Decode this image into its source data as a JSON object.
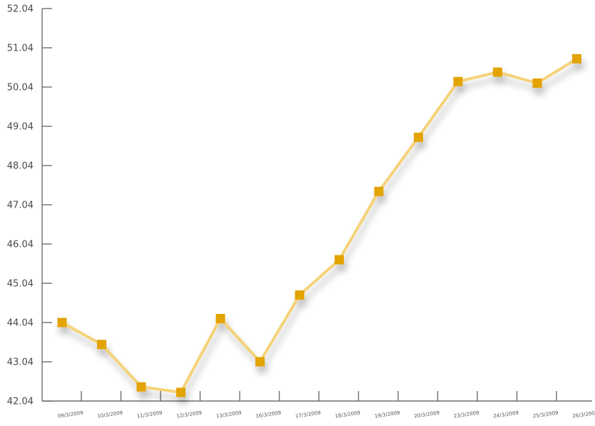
{
  "chart_data": {
    "type": "line",
    "title": "",
    "xlabel": "",
    "ylabel": "",
    "categories": [
      "09/3/2009",
      "10/3/2009",
      "11/3/2009",
      "12/3/2009",
      "13/3/2009",
      "16/3/2009",
      "17/3/2009",
      "18/3/2009",
      "19/3/2009",
      "20/3/2009",
      "23/3/2009",
      "24/3/2009",
      "25/3/2009",
      "26/3/2009"
    ],
    "series": [
      {
        "values": [
          44.04,
          43.48,
          42.4,
          42.26,
          44.14,
          43.04,
          44.74,
          45.64,
          47.38,
          48.76,
          50.18,
          50.42,
          50.14,
          50.76
        ]
      }
    ],
    "y_ticks": [
      "52.04",
      "51.04",
      "50.04",
      "49.04",
      "48.04",
      "47.04",
      "46.04",
      "45.04",
      "44.04",
      "43.04",
      "42.04"
    ],
    "ylim": [
      42.04,
      52.04
    ],
    "grid": false,
    "legend": "none",
    "colors": {
      "line": "#f5d27a",
      "marker": "#e3a300",
      "axis": "#6e6e6e"
    }
  }
}
